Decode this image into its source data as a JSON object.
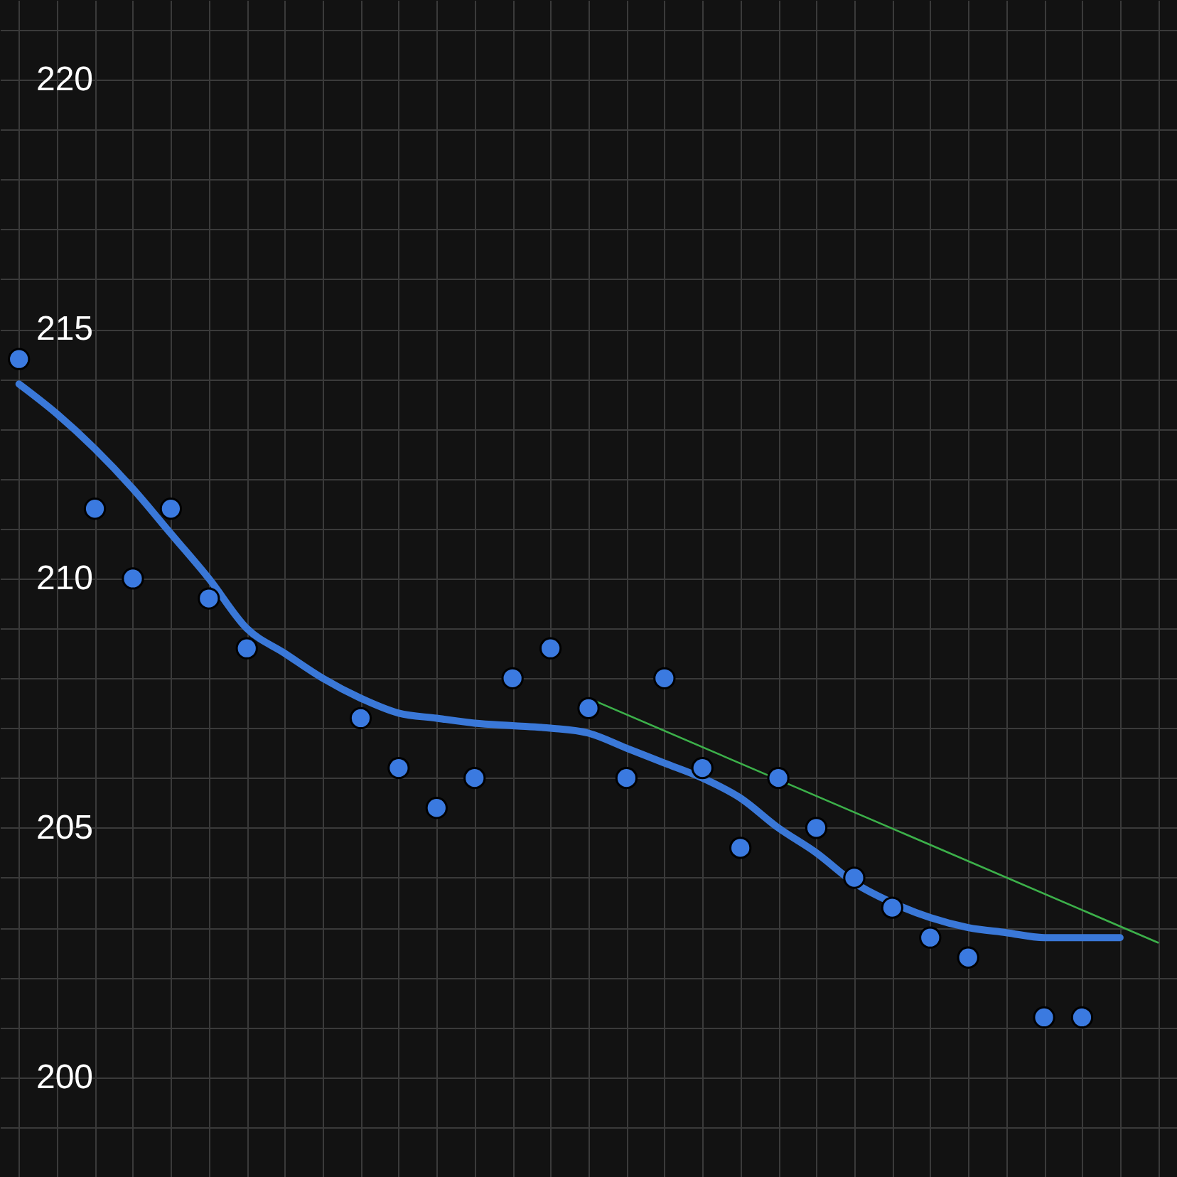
{
  "chart_data": {
    "type": "scatter",
    "categories": [
      null,
      null,
      null,
      null,
      null,
      null,
      null,
      null,
      null,
      null,
      null,
      null,
      null,
      null,
      null,
      null,
      null,
      null,
      null,
      null,
      null,
      null,
      null,
      null,
      null,
      null,
      null,
      null,
      null,
      null,
      null
    ],
    "series": [
      {
        "marker": "circle",
        "color": "#3b7ae0",
        "values": [
          214.4,
          null,
          211.4,
          210.0,
          211.4,
          209.6,
          208.6,
          null,
          null,
          207.2,
          206.2,
          205.4,
          206.0,
          208.0,
          208.6,
          207.4,
          206.0,
          208.0,
          206.2,
          204.6,
          206.0,
          205.0,
          204.0,
          203.4,
          202.8,
          202.4,
          null,
          201.2,
          201.2,
          null,
          null
        ]
      },
      {
        "type": "line",
        "color": "#3a78d8",
        "values": [
          213.9,
          213.3,
          212.6,
          211.8,
          210.9,
          210.0,
          209.0,
          208.5,
          208.0,
          207.6,
          207.3,
          207.2,
          207.1,
          207.05,
          207.0,
          206.9,
          206.6,
          206.3,
          206.0,
          205.6,
          205.0,
          204.5,
          203.9,
          203.5,
          203.2,
          203.0,
          202.9,
          202.8,
          202.8,
          202.8,
          null
        ]
      },
      {
        "type": "line",
        "color": "#3cb04a",
        "values": [
          null,
          null,
          null,
          null,
          null,
          null,
          null,
          null,
          null,
          null,
          null,
          null,
          null,
          null,
          null,
          207.6,
          null,
          null,
          null,
          null,
          null,
          null,
          null,
          null,
          null,
          null,
          null,
          null,
          null,
          null,
          202.7
        ]
      }
    ],
    "ylim": [
      198,
      221.6
    ],
    "yticks": [
      {
        "value": 198,
        "label": null
      },
      {
        "value": 199,
        "label": null
      },
      200,
      {
        "value": 201,
        "label": null
      },
      {
        "value": 202,
        "label": null
      },
      {
        "value": 203,
        "label": null
      },
      {
        "value": 204,
        "label": null
      },
      205,
      {
        "value": 206,
        "label": null
      },
      {
        "value": 207,
        "label": null
      },
      {
        "value": 208,
        "label": null
      },
      {
        "value": 209,
        "label": null
      },
      210,
      {
        "value": 211,
        "label": null
      },
      {
        "value": 212,
        "label": null
      },
      {
        "value": 213,
        "label": null
      },
      {
        "value": 214,
        "label": null
      },
      215,
      {
        "value": 216,
        "label": null
      },
      {
        "value": 217,
        "label": null
      },
      {
        "value": 218,
        "label": null
      },
      {
        "value": 219,
        "label": null
      },
      220,
      {
        "value": 221,
        "label": null
      }
    ],
    "grid": true,
    "tick_labels": "y"
  }
}
